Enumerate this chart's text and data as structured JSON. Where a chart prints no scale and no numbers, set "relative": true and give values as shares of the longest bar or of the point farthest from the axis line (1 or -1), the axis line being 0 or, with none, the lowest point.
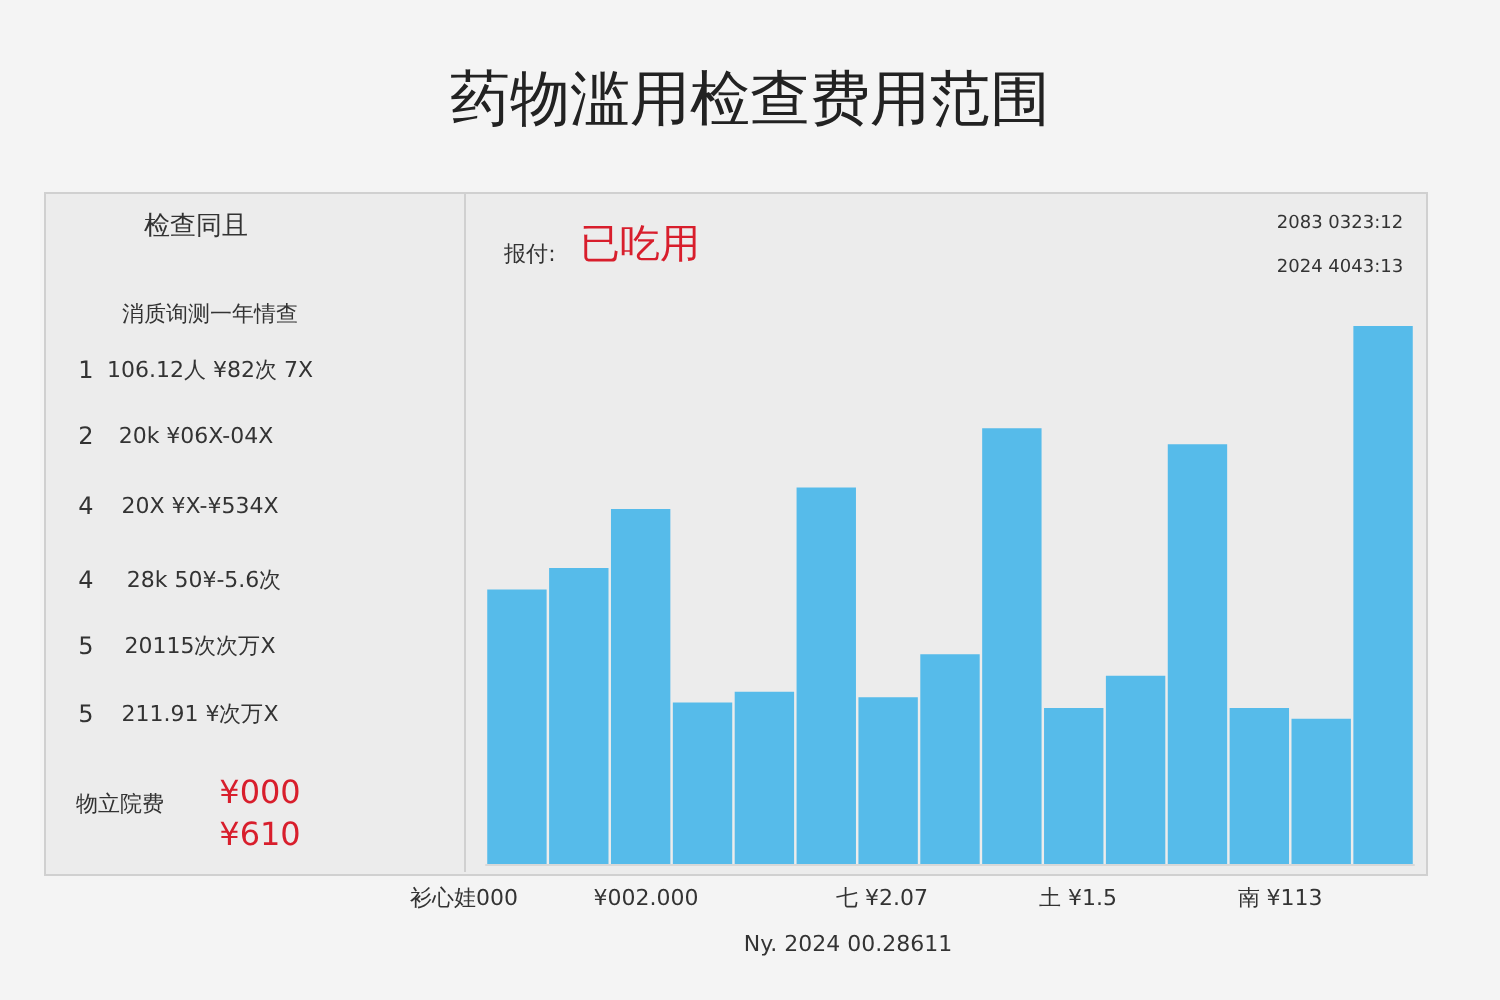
{
  "chart_data": {
    "type": "bar",
    "title": "药物滥用检查费用范围",
    "relative": true,
    "color": "#56bbea",
    "categories": [
      null,
      null,
      null,
      null,
      null,
      null,
      null,
      null,
      null,
      null,
      null,
      null,
      null,
      null,
      null
    ],
    "values": [
      0.51,
      0.55,
      0.66,
      0.3,
      0.32,
      0.7,
      0.31,
      0.39,
      0.81,
      0.29,
      0.35,
      0.78,
      0.29,
      0.27,
      1
    ],
    "annotations": [
      "检查同且",
      "消质询测一年情查",
      "1",
      "106.12人 ¥82次 7X",
      "2",
      "20k ¥06X-04X",
      "4",
      "20X ¥X-¥534X",
      "4",
      "28k 50¥-5.6次",
      "5",
      "20115次次万X",
      "5",
      "211.91 ¥次万X",
      "物立院费",
      "¥000",
      "¥610",
      "报付:",
      "已吃用",
      "2083 0323:12",
      "2024 4043:13",
      "衫心娃000",
      "¥002.000",
      "七 ¥2.07",
      "土 ¥1.5",
      "南 ¥113",
      "Ny. 2024 00.28611"
    ],
    "data_labels": false
  }
}
